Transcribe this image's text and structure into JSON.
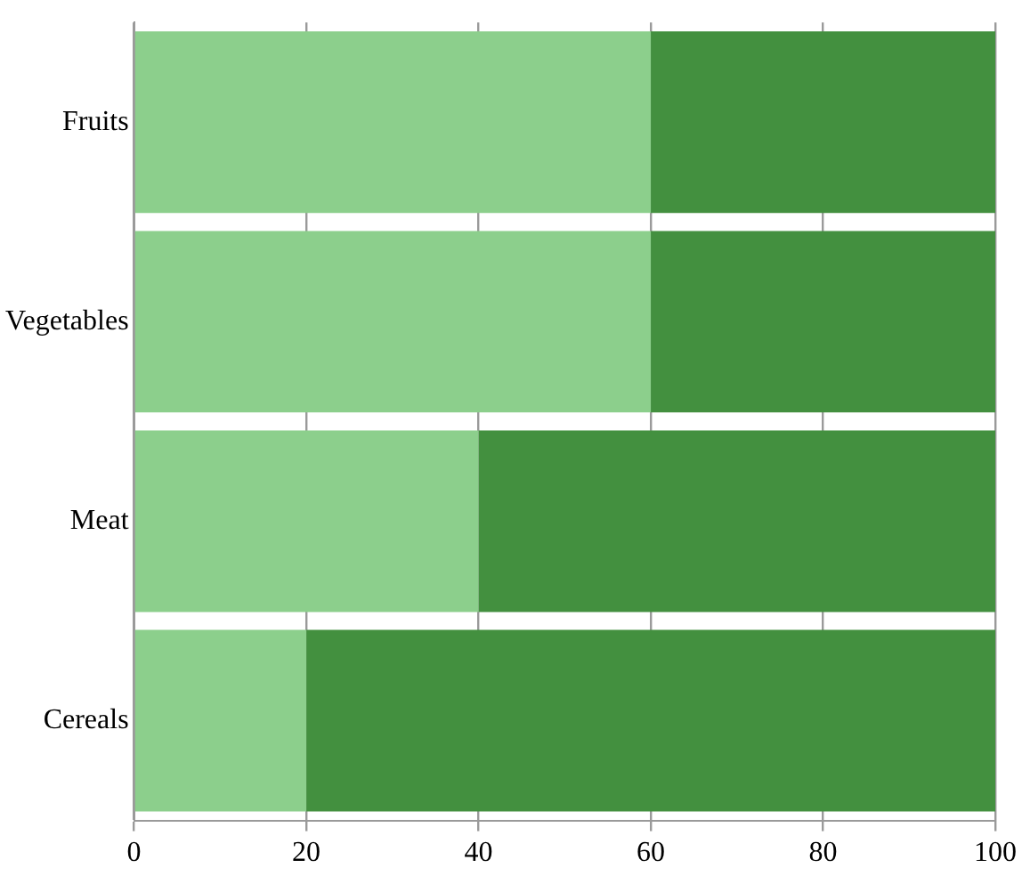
{
  "chart_data": {
    "type": "bar",
    "orientation": "horizontal",
    "stacked": true,
    "categories": [
      "Fruits",
      "Vegetables",
      "Meat",
      "Cereals"
    ],
    "series": [
      {
        "color": "#8ccf8c",
        "values": [
          60,
          60,
          40,
          20
        ]
      },
      {
        "color": "#43903f",
        "values": [
          40,
          40,
          60,
          80
        ]
      }
    ],
    "xlim": [
      0,
      100
    ],
    "xticks": [
      0,
      20,
      40,
      60,
      80,
      100
    ],
    "grid": "x",
    "legend": false
  }
}
